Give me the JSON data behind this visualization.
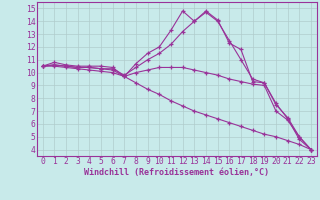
{
  "bg_color": "#c8eaea",
  "line_color": "#993399",
  "grid_color": "#b0cccc",
  "xlabel": "Windchill (Refroidissement éolien,°C)",
  "xlabel_fontsize": 6.0,
  "tick_fontsize": 5.8,
  "ylim": [
    3.5,
    15.5
  ],
  "xlim": [
    -0.5,
    23.5
  ],
  "yticks": [
    4,
    5,
    6,
    7,
    8,
    9,
    10,
    11,
    12,
    13,
    14,
    15
  ],
  "xticks": [
    0,
    1,
    2,
    3,
    4,
    5,
    6,
    7,
    8,
    9,
    10,
    11,
    12,
    13,
    14,
    15,
    16,
    17,
    18,
    19,
    20,
    21,
    22,
    23
  ],
  "lines": [
    {
      "x": [
        0,
        1,
        2,
        3,
        4,
        5,
        6,
        7,
        8,
        9,
        10,
        11,
        12,
        13,
        14,
        15,
        16,
        17,
        18,
        19,
        20,
        21,
        22,
        23
      ],
      "y": [
        10.5,
        10.8,
        10.6,
        10.5,
        10.5,
        10.5,
        10.4,
        9.7,
        10.7,
        11.5,
        12.0,
        13.3,
        14.8,
        14.0,
        14.8,
        14.1,
        12.3,
        11.8,
        9.3,
        9.2,
        7.6,
        6.4,
        4.8,
        4.0
      ]
    },
    {
      "x": [
        0,
        1,
        2,
        3,
        4,
        5,
        6,
        7,
        8,
        9,
        10,
        11,
        12,
        13,
        14,
        15,
        16,
        17,
        18,
        19,
        20,
        21,
        22,
        23
      ],
      "y": [
        10.5,
        10.6,
        10.5,
        10.4,
        10.4,
        10.3,
        10.3,
        9.8,
        10.4,
        11.0,
        11.5,
        12.2,
        13.2,
        14.0,
        14.7,
        14.0,
        12.5,
        11.0,
        9.5,
        9.2,
        7.5,
        6.5,
        5.0,
        4.0
      ]
    },
    {
      "x": [
        0,
        1,
        2,
        3,
        4,
        5,
        6,
        7,
        8,
        9,
        10,
        11,
        12,
        13,
        14,
        15,
        16,
        17,
        18,
        19,
        20,
        21,
        22,
        23
      ],
      "y": [
        10.5,
        10.6,
        10.5,
        10.4,
        10.4,
        10.3,
        10.2,
        9.7,
        10.0,
        10.2,
        10.4,
        10.4,
        10.4,
        10.2,
        10.0,
        9.8,
        9.5,
        9.3,
        9.1,
        9.0,
        7.0,
        6.3,
        5.0,
        4.0
      ]
    },
    {
      "x": [
        0,
        1,
        2,
        3,
        4,
        5,
        6,
        7,
        8,
        9,
        10,
        11,
        12,
        13,
        14,
        15,
        16,
        17,
        18,
        19,
        20,
        21,
        22,
        23
      ],
      "y": [
        10.5,
        10.5,
        10.4,
        10.3,
        10.2,
        10.1,
        10.0,
        9.7,
        9.2,
        8.7,
        8.3,
        7.8,
        7.4,
        7.0,
        6.7,
        6.4,
        6.1,
        5.8,
        5.5,
        5.2,
        5.0,
        4.7,
        4.4,
        4.0
      ]
    }
  ]
}
